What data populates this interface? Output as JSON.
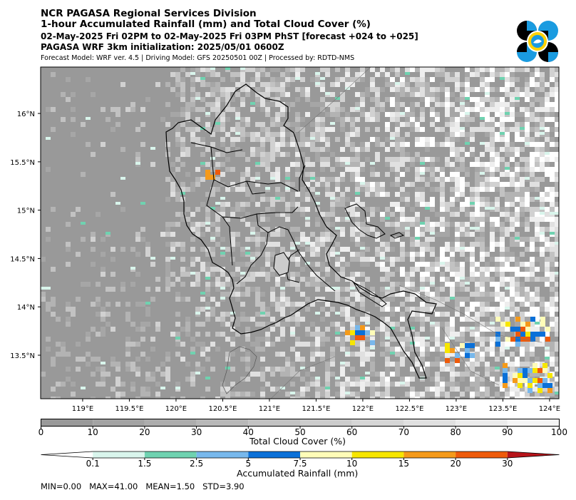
{
  "header": {
    "line1": "NCR PAGASA Regional Services Division",
    "line2": "1-hour Accumulated Rainfall (mm) and Total Cloud Cover (%)",
    "line3": "02-May-2025 Fri 02PM to 02-May-2025 Fri 03PM PhST [forecast +024 to +025]",
    "line4": "PAGASA WRF 3km initialization: 2025/05/01 0600Z",
    "line5": "Forecast Model: WRF ver. 4.5 | Driving Model: GFS 20250501 00Z | Processed by: RDTD-NMS"
  },
  "map": {
    "lon_ticks": [
      "119°E",
      "119.5°E",
      "120°E",
      "120.5°E",
      "121°E",
      "121.5°E",
      "122°E",
      "122.5°E",
      "123°E",
      "123.5°E",
      "124°E"
    ],
    "lat_ticks": [
      "16°N",
      "15.5°N",
      "15°N",
      "14.5°N",
      "14°N",
      "13.5°N"
    ],
    "lon_range": [
      118.55,
      124.1
    ],
    "lat_range": [
      13.05,
      16.48
    ],
    "land_color": "#ffffff",
    "sea_cloud_color": "#999999",
    "coastline_color": "#000000"
  },
  "cloud_bar": {
    "label": "Total Cloud Cover (%)",
    "ticks": [
      "0",
      "10",
      "20",
      "30",
      "40",
      "50",
      "60",
      "70",
      "80",
      "90",
      "100"
    ],
    "colors": [
      "#999999",
      "#a3a3a3",
      "#adadad",
      "#b8b8b8",
      "#c2c2c2",
      "#cccccc",
      "#d6d6d6",
      "#e0e0e0",
      "#ebebeb",
      "#f5f5f5"
    ]
  },
  "rain_bar": {
    "label": "Accumulated Rainfall (mm)",
    "ticks": [
      "0.1",
      "1.5",
      "2.5",
      "5",
      "7.5",
      "10",
      "15",
      "20",
      "30"
    ],
    "colors": [
      "#ffffff",
      "#d9f5ec",
      "#6fd2b0",
      "#78b8ec",
      "#0a70d8",
      "#fffcb8",
      "#f7e600",
      "#f59a1a",
      "#ee5a0a",
      "#b7141a"
    ]
  },
  "stats": {
    "text": "MIN=0.00   MAX=41.00   MEAN=1.50   STD=3.90"
  },
  "logo": {
    "name": "PAGASA logo",
    "colors": [
      "#000000",
      "#1a9be0",
      "#ffd200"
    ]
  }
}
